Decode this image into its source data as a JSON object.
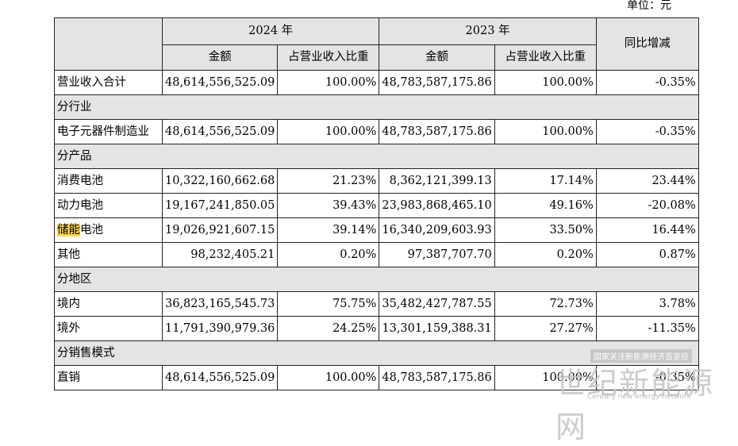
{
  "unit_label": "单位：元",
  "header": {
    "year_2024": "2024 年",
    "year_2023": "2023 年",
    "amount": "金额",
    "share": "占营业收入比重",
    "yoy": "同比增减"
  },
  "rows": [
    {
      "type": "data",
      "label": "营业收入合计",
      "amount_2024": "48,614,556,525.09",
      "share_2024": "100.00%",
      "amount_2023": "48,783,587,175.86",
      "share_2023": "100.00%",
      "yoy": "-0.35%"
    },
    {
      "type": "section",
      "label": "分行业"
    },
    {
      "type": "data",
      "label": "电子元器件制造业",
      "amount_2024": "48,614,556,525.09",
      "share_2024": "100.00%",
      "amount_2023": "48,783,587,175.86",
      "share_2023": "100.00%",
      "yoy": "-0.35%"
    },
    {
      "type": "section",
      "label": "分产品"
    },
    {
      "type": "data",
      "label": "消费电池",
      "amount_2024": "10,322,160,662.68",
      "share_2024": "21.23%",
      "amount_2023": "8,362,121,399.13",
      "share_2023": "17.14%",
      "yoy": "23.44%"
    },
    {
      "type": "data",
      "label": "动力电池",
      "amount_2024": "19,167,241,850.05",
      "share_2024": "39.43%",
      "amount_2023": "23,983,868,465.10",
      "share_2023": "49.16%",
      "yoy": "-20.08%"
    },
    {
      "type": "data",
      "label": "储能电池",
      "label_highlight": "储能",
      "label_rest": "电池",
      "amount_2024": "19,026,921,607.15",
      "share_2024": "39.14%",
      "amount_2023": "16,340,209,603.93",
      "share_2023": "33.50%",
      "yoy": "16.44%"
    },
    {
      "type": "data",
      "label": "其他",
      "amount_2024": "98,232,405.21",
      "share_2024": "0.20%",
      "amount_2023": "97,387,707.70",
      "share_2023": "0.20%",
      "yoy": "0.87%"
    },
    {
      "type": "section",
      "label": "分地区"
    },
    {
      "type": "data",
      "label": "境内",
      "amount_2024": "36,823,165,545.73",
      "share_2024": "75.75%",
      "amount_2023": "35,482,427,787.55",
      "share_2023": "72.73%",
      "yoy": "3.78%"
    },
    {
      "type": "data",
      "label": "境外",
      "amount_2024": "11,791,390,979.36",
      "share_2024": "24.25%",
      "amount_2023": "13,301,159,388.31",
      "share_2023": "27.27%",
      "yoy": "-11.35%"
    },
    {
      "type": "section",
      "label": "分销售模式"
    },
    {
      "type": "data",
      "label": "直销",
      "amount_2024": "48,614,556,525.09",
      "share_2024": "100.00%",
      "amount_2023": "48,783,587,175.86",
      "share_2023": "100.00%",
      "yoy": "-0.35%"
    }
  ],
  "watermark": {
    "tag": "国家关注新能源经济百变应",
    "brand": "世纪新能源网",
    "sub": "Century new energy network"
  }
}
